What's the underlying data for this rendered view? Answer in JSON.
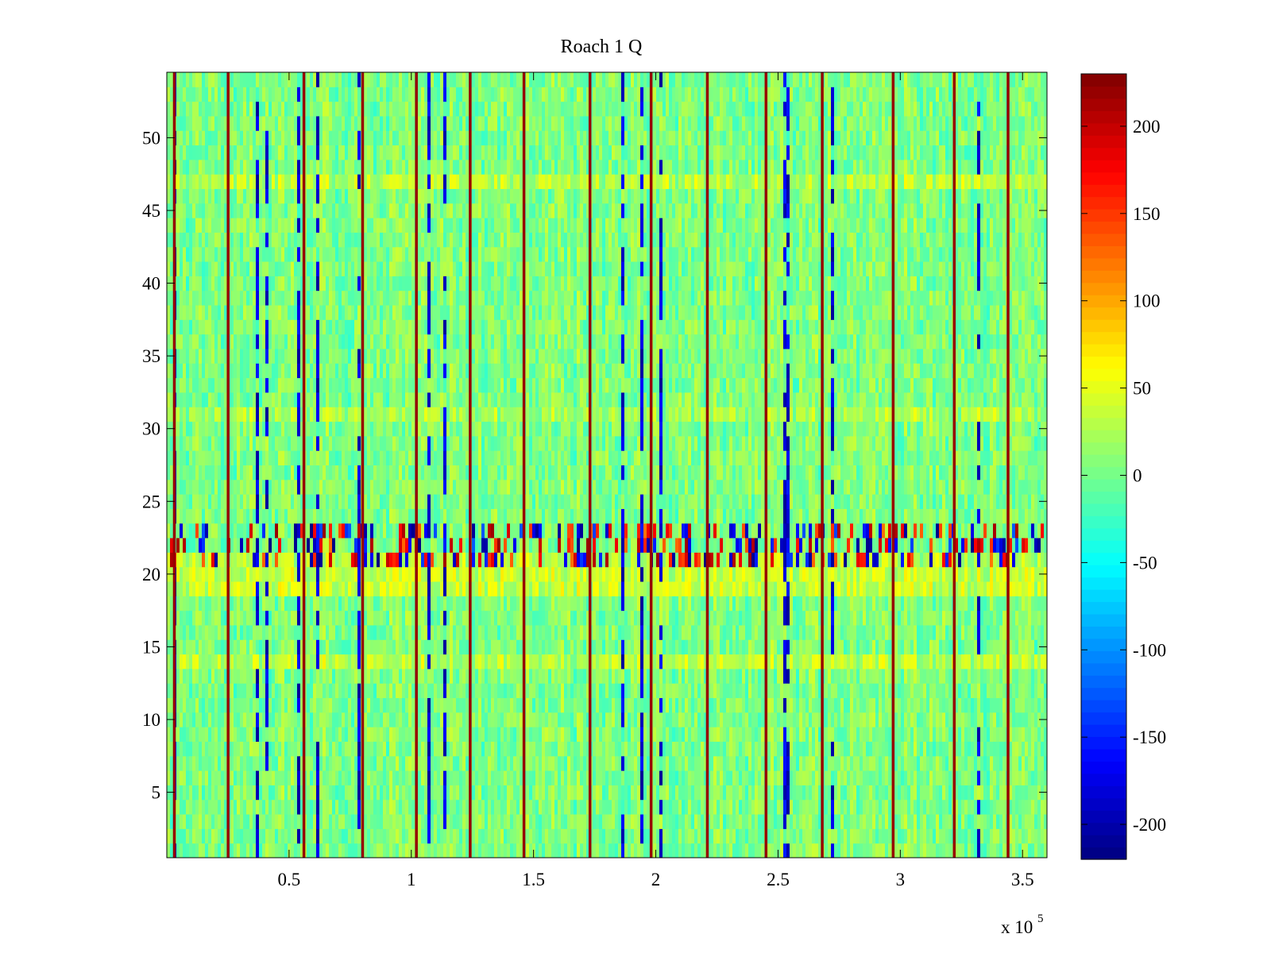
{
  "chart_data": {
    "type": "heatmap",
    "title": "Roach 1 Q",
    "xlabel": "",
    "ylabel": "",
    "x_range": [
      0,
      360000
    ],
    "y_range": [
      0.5,
      54.5
    ],
    "x_ticks": [
      {
        "value": 50000,
        "label": "0.5"
      },
      {
        "value": 100000,
        "label": "1"
      },
      {
        "value": 150000,
        "label": "1.5"
      },
      {
        "value": 200000,
        "label": "2"
      },
      {
        "value": 250000,
        "label": "2.5"
      },
      {
        "value": 300000,
        "label": "3"
      },
      {
        "value": 350000,
        "label": "3.5"
      }
    ],
    "x_exponent_label": "x 10",
    "x_exponent_power": "5",
    "y_ticks": [
      {
        "value": 5,
        "label": "5"
      },
      {
        "value": 10,
        "label": "10"
      },
      {
        "value": 15,
        "label": "15"
      },
      {
        "value": 20,
        "label": "20"
      },
      {
        "value": 25,
        "label": "25"
      },
      {
        "value": 30,
        "label": "30"
      },
      {
        "value": 35,
        "label": "35"
      },
      {
        "value": 40,
        "label": "40"
      },
      {
        "value": 45,
        "label": "45"
      },
      {
        "value": 50,
        "label": "50"
      }
    ],
    "colorbar": {
      "colormap": "jet",
      "range": [
        -220,
        230
      ],
      "ticks": [
        {
          "value": 200,
          "label": "200"
        },
        {
          "value": 150,
          "label": "150"
        },
        {
          "value": 100,
          "label": "100"
        },
        {
          "value": 50,
          "label": "50"
        },
        {
          "value": 0,
          "label": "0"
        },
        {
          "value": -50,
          "label": "-50"
        },
        {
          "value": -100,
          "label": "-100"
        },
        {
          "value": -150,
          "label": "-150"
        },
        {
          "value": -200,
          "label": "-200"
        }
      ]
    },
    "grid": false,
    "rows": 54,
    "baseline_value": 5,
    "row_profile": [
      {
        "row": 14,
        "value": 32
      },
      {
        "row": 19,
        "value": 38
      },
      {
        "row": 20,
        "value": 38
      },
      {
        "row": 21,
        "value": 30
      },
      {
        "row": 47,
        "value": 30
      },
      {
        "row": 31,
        "value": 22
      }
    ],
    "noisy_rows": [
      21,
      22,
      23
    ],
    "spike_columns": [
      3000,
      25000,
      56000,
      80000,
      102000,
      124000,
      146000,
      173000,
      198000,
      221000,
      245000,
      268000,
      297000,
      322000,
      344000
    ],
    "spike_value": 220
  }
}
